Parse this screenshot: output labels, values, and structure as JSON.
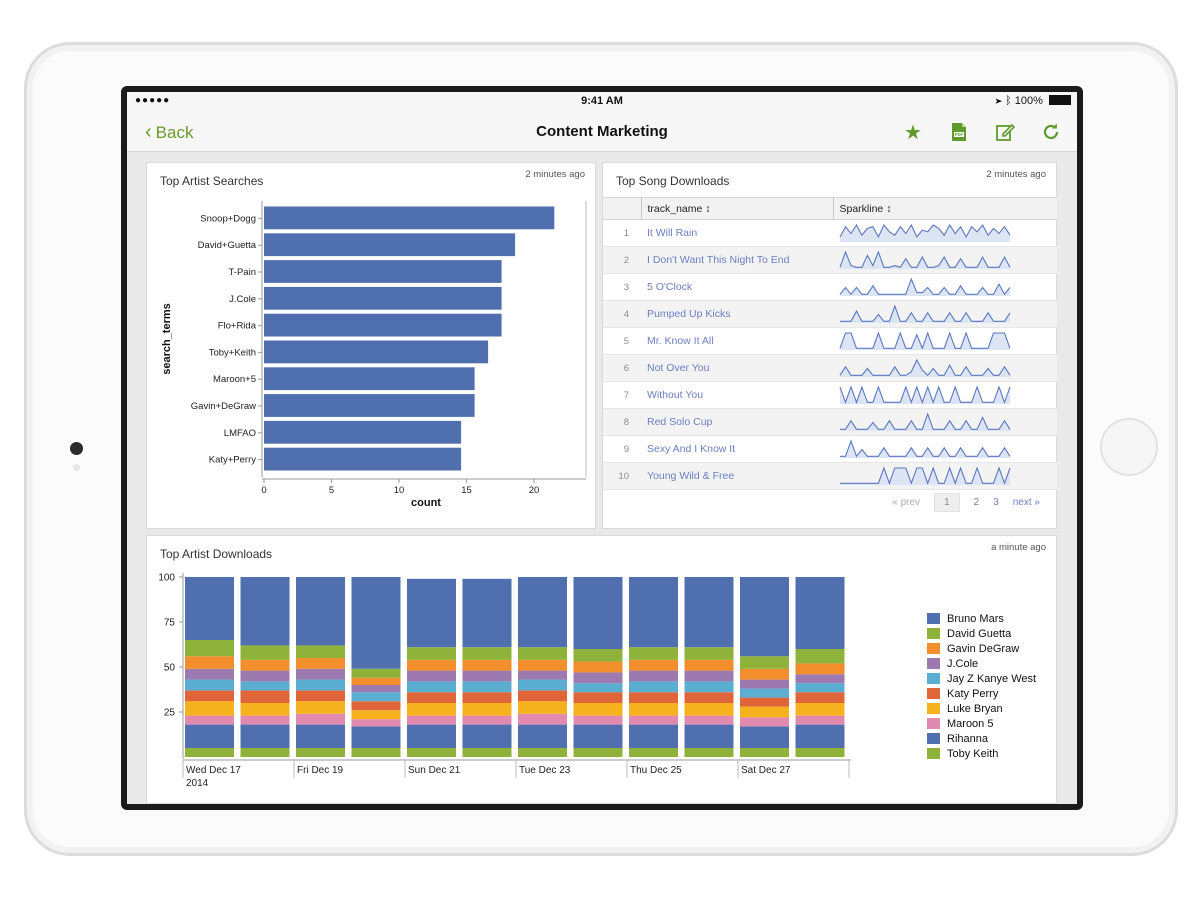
{
  "status_bar": {
    "signal": "●●●●● ",
    "time": "9:41 AM",
    "battery": "100%"
  },
  "nav": {
    "back_label": "Back",
    "title": "Content Marketing"
  },
  "colors": {
    "accent": "#6a9a2c",
    "bar": "#4f6faf",
    "link": "#6b7fc0"
  },
  "top_artist_searches": {
    "title": "Top Artist Searches",
    "updated": "2 minutes ago"
  },
  "top_song_downloads": {
    "title": "Top Song Downloads",
    "updated": "2 minutes ago",
    "columns": [
      "track_name ↕",
      "Sparkline ↕"
    ],
    "rows": [
      {
        "rank": "1",
        "track": "It Will Rain",
        "spark": [
          0.3,
          0.9,
          0.5,
          1,
          0.4,
          0.8,
          0.9,
          0.3,
          1,
          0.6,
          0.4,
          0.9,
          0.5,
          1,
          0.3,
          0.7,
          0.6,
          1,
          0.8,
          0.4,
          1,
          0.5,
          0.9,
          0.3,
          0.9,
          0.6,
          1,
          0.4,
          0.8,
          0.5,
          0.9,
          0.4
        ]
      },
      {
        "rank": "2",
        "track": "I Don't Want This Night To End",
        "spark": [
          0.1,
          1,
          0.2,
          0.1,
          0.1,
          0.8,
          0.2,
          1,
          0.1,
          0.1,
          0.2,
          0.1,
          0.6,
          0.1,
          0.1,
          0.7,
          0.1,
          0.1,
          0.2,
          0.7,
          0.1,
          0.1,
          0.6,
          0.1,
          0.1,
          0.1,
          0.7,
          0.1,
          0.1,
          0.1,
          0.7,
          0.1
        ]
      },
      {
        "rank": "3",
        "track": "5 O'Clock",
        "spark": [
          0.1,
          0.5,
          0.1,
          0.5,
          0.1,
          0.1,
          0.6,
          0.1,
          0.1,
          0.1,
          0.1,
          0.1,
          0.1,
          1,
          0.2,
          0.2,
          0.5,
          0.1,
          0.1,
          0.5,
          0.1,
          0.1,
          0.6,
          0.1,
          0.1,
          0.1,
          0.5,
          0.1,
          0.1,
          0.7,
          0.1,
          0.5
        ]
      },
      {
        "rank": "4",
        "track": "Pumped Up Kicks",
        "spark": [
          0.1,
          0.1,
          0.1,
          0.7,
          0.1,
          0.1,
          0.1,
          0.5,
          0.1,
          0.1,
          1,
          0.1,
          0.1,
          0.6,
          0.1,
          0.1,
          0.6,
          0.1,
          0.1,
          0.1,
          0.6,
          0.1,
          0.1,
          0.6,
          0.1,
          0.1,
          0.1,
          0.6,
          0.1,
          0.1,
          0.1,
          0.6
        ]
      },
      {
        "rank": "5",
        "track": "Mr. Know It All",
        "spark": [
          0.1,
          1,
          1,
          0.1,
          0.1,
          0.1,
          0.1,
          1,
          0.1,
          0.1,
          0.1,
          1,
          0.1,
          0.1,
          0.9,
          0.1,
          1,
          0.1,
          0.1,
          0.1,
          1,
          0.1,
          0.1,
          1,
          0.1,
          0.1,
          0.1,
          0.1,
          1,
          1,
          1,
          0.1
        ]
      },
      {
        "rank": "6",
        "track": "Not Over You",
        "spark": [
          0.1,
          0.6,
          0.1,
          0.1,
          0.1,
          0.5,
          0.1,
          0.1,
          0.1,
          0.1,
          0.6,
          0.1,
          0.1,
          0.3,
          1,
          0.4,
          0.1,
          0.5,
          0.1,
          0.1,
          0.7,
          0.1,
          0.1,
          0.6,
          0.1,
          0.1,
          0.1,
          0.5,
          0.1,
          0.1,
          0.6,
          0.1
        ]
      },
      {
        "rank": "7",
        "track": "Without You",
        "spark": [
          1,
          0.1,
          1,
          0.1,
          1,
          0.1,
          0.1,
          1,
          0.1,
          0.1,
          0.1,
          0.1,
          1,
          0.1,
          1,
          0.1,
          1,
          0.1,
          1,
          0.1,
          0.1,
          1,
          0.1,
          0.1,
          0.1,
          1,
          0.1,
          0.1,
          0.1,
          1,
          0.1,
          1
        ]
      },
      {
        "rank": "8",
        "track": "Red Solo Cup",
        "spark": [
          0.1,
          0.1,
          0.6,
          0.1,
          0.1,
          0.1,
          0.5,
          0.1,
          0.1,
          0.6,
          0.1,
          0.1,
          0.1,
          0.6,
          0.1,
          0.1,
          1,
          0.1,
          0.1,
          0.1,
          0.6,
          0.1,
          0.1,
          0.6,
          0.1,
          0.1,
          0.8,
          0.1,
          0.1,
          0.1,
          0.6,
          0.1
        ]
      },
      {
        "rank": "9",
        "track": "Sexy And I Know It",
        "spark": [
          0.1,
          0.1,
          1,
          0.1,
          0.5,
          0.1,
          0.1,
          0.1,
          0.6,
          0.1,
          0.1,
          0.1,
          0.1,
          0.6,
          0.1,
          0.1,
          0.6,
          0.1,
          0.1,
          0.6,
          0.1,
          0.1,
          0.6,
          0.1,
          0.1,
          0.1,
          0.6,
          0.1,
          0.1,
          0.1,
          0.6,
          0.1
        ]
      },
      {
        "rank": "10",
        "track": "Young Wild & Free",
        "spark": [
          0.1,
          0.1,
          0.1,
          0.1,
          0.1,
          0.1,
          0.1,
          0.1,
          1,
          0.1,
          1,
          1,
          1,
          0.1,
          1,
          1,
          0.1,
          1,
          0.1,
          0.1,
          1,
          0.1,
          1,
          0.1,
          0.1,
          1,
          0.1,
          0.1,
          0.1,
          1,
          0.1,
          1
        ]
      }
    ],
    "pager": {
      "prev": "« prev",
      "pages": [
        "1",
        "2",
        "3"
      ],
      "next": "next »"
    }
  },
  "top_artist_downloads": {
    "title": "Top Artist Downloads",
    "updated": "a minute ago"
  },
  "chart_data": [
    {
      "type": "bar",
      "orientation": "horizontal",
      "title": "Top Artist Searches",
      "xlabel": "count",
      "ylabel": "search_terms",
      "categories": [
        "Snoop+Dogg",
        "David+Guetta",
        "T-Pain",
        "J.Cole",
        "Flo+Rida",
        "Toby+Keith",
        "Maroon+5",
        "Gavin+DeGraw",
        "LMFAO",
        "Katy+Perry"
      ],
      "values": [
        21.5,
        18.6,
        17.6,
        17.6,
        17.6,
        16.6,
        15.6,
        15.6,
        14.6,
        14.6
      ],
      "xlim": [
        0,
        24
      ],
      "xticks": [
        "0",
        "5",
        "10",
        "15",
        "20"
      ]
    },
    {
      "type": "bar",
      "stacked": true,
      "title": "Top Artist Downloads",
      "categories": [
        "Wed Dec 17 2014",
        "",
        "Fri Dec 19",
        "",
        "Sun Dec 21",
        "",
        "Tue Dec 23",
        "",
        "Thu Dec 25",
        "",
        "Sat Dec 27",
        ""
      ],
      "xtick_labels": [
        [
          "Wed Dec 17",
          "2014"
        ],
        [
          "Fri Dec 19"
        ],
        [
          "Sun Dec 21"
        ],
        [
          "Tue Dec 23"
        ],
        [
          "Thu Dec 25"
        ],
        [
          "Sat Dec 27"
        ]
      ],
      "ylim": [
        0,
        100
      ],
      "yticks": [
        "25",
        "50",
        "75",
        "100"
      ],
      "legend_position": "right",
      "series": [
        {
          "name": "Toby Keith",
          "color": "#8fb23a",
          "values": [
            5,
            5,
            5,
            5,
            5,
            5,
            5,
            5,
            5,
            5,
            5,
            5
          ]
        },
        {
          "name": "Rihanna",
          "color": "#4f6faf",
          "values": [
            13,
            13,
            13,
            12,
            13,
            13,
            13,
            13,
            13,
            13,
            12,
            13
          ]
        },
        {
          "name": "Maroon 5",
          "color": "#e08ab0",
          "values": [
            5,
            5,
            6,
            4,
            5,
            5,
            6,
            5,
            5,
            5,
            5,
            5
          ]
        },
        {
          "name": "Luke Bryan",
          "color": "#f5b21e",
          "values": [
            8,
            7,
            7,
            5,
            7,
            7,
            7,
            7,
            7,
            7,
            6,
            7
          ]
        },
        {
          "name": "Katy Perry",
          "color": "#e0663a",
          "values": [
            6,
            7,
            6,
            5,
            6,
            6,
            6,
            6,
            6,
            6,
            5,
            6
          ]
        },
        {
          "name": "Jay Z Kanye West",
          "color": "#5aaed2",
          "values": [
            6,
            5,
            6,
            5,
            6,
            6,
            6,
            5,
            6,
            6,
            5,
            5
          ]
        },
        {
          "name": "J.Cole",
          "color": "#9c79ae",
          "values": [
            6,
            6,
            6,
            4,
            6,
            6,
            5,
            6,
            6,
            6,
            5,
            5
          ]
        },
        {
          "name": "Gavin DeGraw",
          "color": "#f28e2b",
          "values": [
            7,
            6,
            6,
            4,
            6,
            6,
            6,
            6,
            6,
            6,
            6,
            6
          ]
        },
        {
          "name": "David Guetta",
          "color": "#8fb23a",
          "values": [
            9,
            8,
            7,
            5,
            7,
            7,
            7,
            7,
            7,
            7,
            7,
            8
          ]
        },
        {
          "name": "Bruno Mars",
          "color": "#4f6faf",
          "values": [
            35,
            38,
            38,
            51,
            38,
            38,
            39,
            40,
            39,
            39,
            44,
            40
          ]
        }
      ]
    }
  ]
}
